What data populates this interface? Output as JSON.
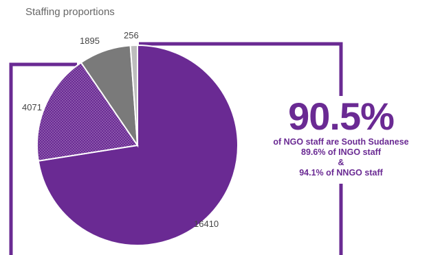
{
  "chart_data": {
    "type": "pie",
    "title": "Staffing proportions",
    "slices": [
      {
        "value": 16410,
        "label": "16410",
        "color": "#6a2a93",
        "pattern": "solid"
      },
      {
        "value": 4071,
        "label": "4071",
        "color": "#6a2a93",
        "pattern": "dotted"
      },
      {
        "value": 1895,
        "label": "1895",
        "color": "#7a7a7a",
        "pattern": "solid"
      },
      {
        "value": 256,
        "label": "256",
        "color": "#bdbdbd",
        "pattern": "solid"
      }
    ]
  },
  "callout": {
    "big_value": "90.5%",
    "line1": "of NGO staff are South Sudanese",
    "line2": "89.6% of INGO staff",
    "line3": "&",
    "line4": "94.1% of NNGO staff"
  },
  "colors": {
    "accent": "#6a2a93",
    "text": "#444444",
    "title": "#666666"
  }
}
